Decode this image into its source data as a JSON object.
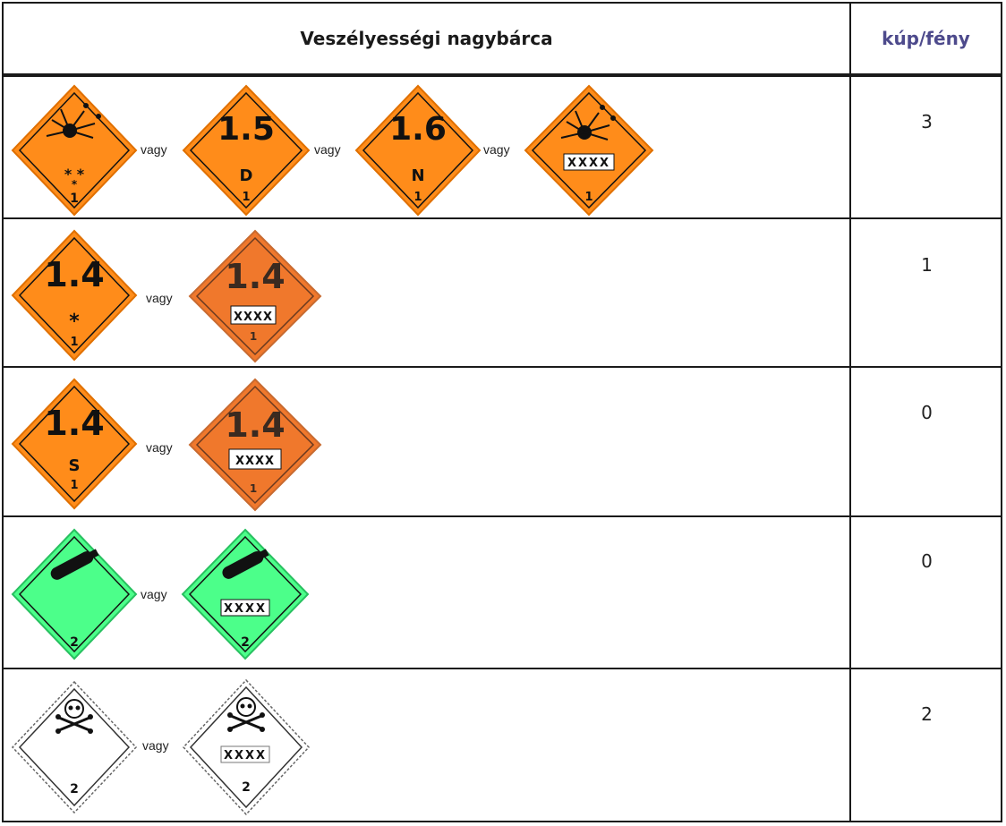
{
  "header": {
    "col1": "Veszélyességi nagybárca",
    "col2": "kúp/fény"
  },
  "connector": "vagy",
  "rows": [
    {
      "count": "3",
      "signs": [
        {
          "type": "explosive-bomb",
          "color": "#ff8c1a",
          "top_text": "",
          "compat": "* *",
          "star2": "*",
          "class": "1"
        },
        {
          "type": "division",
          "color": "#ff8c1a",
          "top_text": "1.5",
          "compat": "D",
          "class": "1"
        },
        {
          "type": "division",
          "color": "#ff8c1a",
          "top_text": "1.6",
          "compat": "N",
          "class": "1"
        },
        {
          "type": "explosive-bomb-box",
          "color": "#ff8c1a",
          "box": "XXXX",
          "class": "1"
        }
      ]
    },
    {
      "count": "1",
      "signs": [
        {
          "type": "division",
          "color": "#ff8c1a",
          "top_text": "1.4",
          "compat": "*",
          "class": "1"
        },
        {
          "type": "division-box",
          "color": "#f0782c",
          "top_text": "1.4",
          "box": "XXXX",
          "class": "1"
        }
      ]
    },
    {
      "count": "0",
      "signs": [
        {
          "type": "division",
          "color": "#ff8c1a",
          "top_text": "1.4",
          "compat": "S",
          "class": "1"
        },
        {
          "type": "division-box",
          "color": "#f0782c",
          "top_text": "1.4",
          "box": "XXXX",
          "class": "1"
        }
      ]
    },
    {
      "count": "0",
      "signs": [
        {
          "type": "gas-cylinder",
          "color": "#4cff8a",
          "class": "2"
        },
        {
          "type": "gas-cylinder-box",
          "color": "#4cff8a",
          "box": "XXXX",
          "class": "2"
        }
      ]
    },
    {
      "count": "2",
      "signs": [
        {
          "type": "skull",
          "color": "#ffffff",
          "class": "2"
        },
        {
          "type": "skull-box",
          "color": "#ffffff",
          "box": "XXXX",
          "class": "2"
        }
      ]
    }
  ]
}
